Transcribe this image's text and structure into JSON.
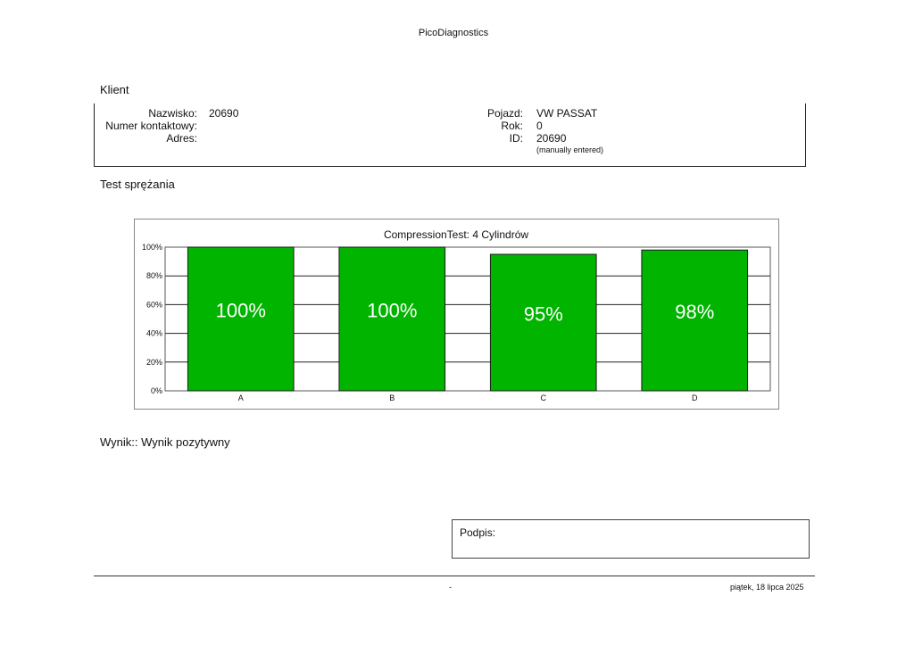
{
  "header": {
    "app_title": "PicoDiagnostics"
  },
  "client": {
    "section_title": "Klient",
    "surname_label": "Nazwisko:",
    "surname_value": "20690",
    "contact_label": "Numer kontaktowy:",
    "address_label": "Adres:",
    "vehicle_label": "Pojazd:",
    "vehicle_value": "VW PASSAT",
    "year_label": "Rok:",
    "year_value": "0",
    "id_label": "ID:",
    "id_value": "20690",
    "id_note": "(manually entered)"
  },
  "test": {
    "section_title": "Test sprężania"
  },
  "chart_data": {
    "type": "bar",
    "title": "CompressionTest: 4 Cylindrów",
    "categories": [
      "A",
      "B",
      "C",
      "D"
    ],
    "values": [
      100,
      100,
      95,
      98
    ],
    "data_labels": [
      "100%",
      "100%",
      "95%",
      "98%"
    ],
    "y_ticks": [
      "0%",
      "20%",
      "40%",
      "60%",
      "80%",
      "100%"
    ],
    "ylim": [
      0,
      100
    ],
    "grid": true,
    "bar_color": "#00b400",
    "xlabel": "",
    "ylabel": ""
  },
  "result": {
    "text": "Wynik:: Wynik pozytywny"
  },
  "signature": {
    "label": "Podpis:"
  },
  "footer": {
    "center": "-",
    "date": "piątek, 18 lipca 2025"
  }
}
